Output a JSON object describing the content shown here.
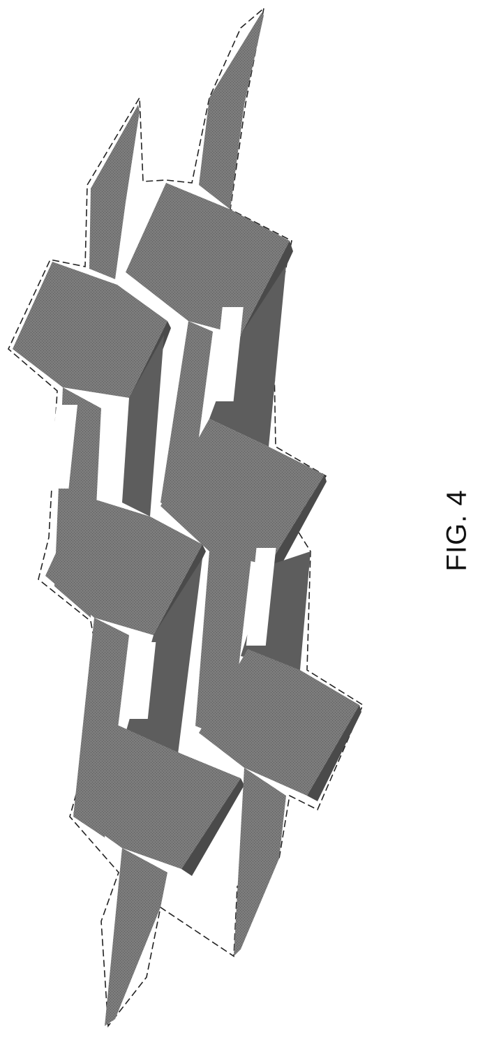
{
  "figure": {
    "caption": "FIG. 4",
    "fill_top": "#7c7c7c",
    "fill_side": "#5d5d5d",
    "fill_dark": "#4a4a4a",
    "outline_color": "#222222",
    "background": "#ffffff"
  }
}
